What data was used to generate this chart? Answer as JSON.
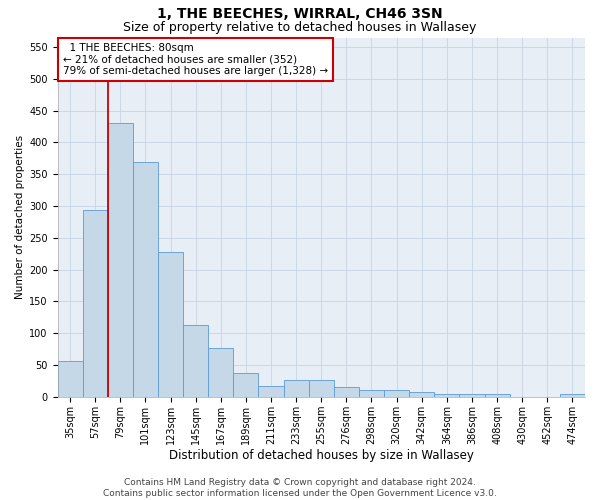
{
  "title": "1, THE BEECHES, WIRRAL, CH46 3SN",
  "subtitle": "Size of property relative to detached houses in Wallasey",
  "xlabel": "Distribution of detached houses by size in Wallasey",
  "ylabel": "Number of detached properties",
  "footer_line1": "Contains HM Land Registry data © Crown copyright and database right 2024.",
  "footer_line2": "Contains public sector information licensed under the Open Government Licence v3.0.",
  "categories": [
    "35sqm",
    "57sqm",
    "79sqm",
    "101sqm",
    "123sqm",
    "145sqm",
    "167sqm",
    "189sqm",
    "211sqm",
    "233sqm",
    "255sqm",
    "276sqm",
    "298sqm",
    "320sqm",
    "342sqm",
    "364sqm",
    "386sqm",
    "408sqm",
    "430sqm",
    "452sqm",
    "474sqm"
  ],
  "values": [
    57,
    293,
    430,
    370,
    227,
    113,
    76,
    38,
    17,
    27,
    27,
    15,
    10,
    10,
    8,
    4,
    4,
    4,
    0,
    0,
    5
  ],
  "bar_color": "#c5d8e8",
  "bar_edge_color": "#5b9bd5",
  "vline_bin": 2,
  "annotation_line1": "  1 THE BEECHES: 80sqm",
  "annotation_line2": "← 21% of detached houses are smaller (352)",
  "annotation_line3": "79% of semi-detached houses are larger (1,328) →",
  "annotation_box_facecolor": "#ffffff",
  "annotation_box_edgecolor": "#cc0000",
  "ylim_max": 565,
  "yticks": [
    0,
    50,
    100,
    150,
    200,
    250,
    300,
    350,
    400,
    450,
    500,
    550
  ],
  "grid_color": "#c8d4e4",
  "background_color": "#e8eef5",
  "vline_color": "#cc0000",
  "title_fontsize": 10,
  "subtitle_fontsize": 9,
  "xlabel_fontsize": 8.5,
  "ylabel_fontsize": 7.5,
  "tick_fontsize": 7,
  "annotation_fontsize": 7.5,
  "footer_fontsize": 6.5
}
